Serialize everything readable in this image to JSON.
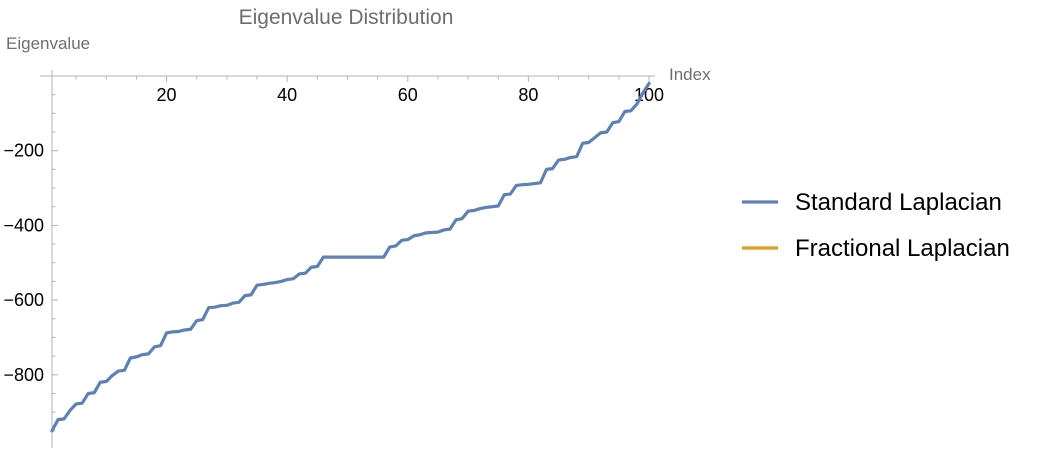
{
  "chart_data": {
    "type": "line",
    "title": "Eigenvalue Distribution",
    "xlabel": "Index",
    "ylabel": "Eigenvalue",
    "xlim": [
      1,
      100
    ],
    "ylim": [
      -960,
      0
    ],
    "x_ticks": [
      20,
      40,
      60,
      80,
      100
    ],
    "y_ticks": [
      -200,
      -400,
      -600,
      -800
    ],
    "grid": false,
    "legend": "right",
    "series": [
      {
        "name": "Standard Laplacian",
        "color": "#5e81b5",
        "x": [
          1,
          2,
          3,
          4,
          5,
          6,
          7,
          8,
          9,
          10,
          11,
          12,
          13,
          14,
          15,
          16,
          17,
          18,
          19,
          20,
          21,
          22,
          23,
          24,
          25,
          26,
          27,
          28,
          29,
          30,
          31,
          32,
          33,
          34,
          35,
          36,
          37,
          38,
          39,
          40,
          41,
          42,
          43,
          44,
          45,
          46,
          47,
          48,
          49,
          50,
          51,
          52,
          53,
          54,
          55,
          56,
          57,
          58,
          59,
          60,
          61,
          62,
          63,
          64,
          65,
          66,
          67,
          68,
          69,
          70,
          71,
          72,
          73,
          74,
          75,
          76,
          77,
          78,
          79,
          80,
          81,
          82,
          83,
          84,
          85,
          86,
          87,
          88,
          89,
          90,
          91,
          92,
          93,
          94,
          95,
          96,
          97,
          98,
          99,
          100
        ],
        "values": [
          -950,
          -920,
          -918,
          -895,
          -878,
          -876,
          -850,
          -848,
          -820,
          -818,
          -802,
          -790,
          -788,
          -755,
          -752,
          -746,
          -744,
          -725,
          -722,
          -688,
          -685,
          -684,
          -680,
          -678,
          -655,
          -652,
          -620,
          -619,
          -615,
          -614,
          -608,
          -606,
          -588,
          -586,
          -560,
          -558,
          -555,
          -553,
          -550,
          -545,
          -543,
          -530,
          -528,
          -512,
          -510,
          -485,
          -485,
          -485,
          -485,
          -485,
          -485,
          -485,
          -485,
          -485,
          -485,
          -485,
          -458,
          -455,
          -440,
          -438,
          -428,
          -425,
          -420,
          -419,
          -418,
          -412,
          -410,
          -385,
          -382,
          -362,
          -360,
          -355,
          -352,
          -350,
          -348,
          -318,
          -316,
          -293,
          -291,
          -290,
          -288,
          -286,
          -250,
          -248,
          -225,
          -223,
          -218,
          -216,
          -180,
          -178,
          -165,
          -152,
          -150,
          -125,
          -122,
          -95,
          -93,
          -75,
          -45,
          -20
        ]
      },
      {
        "name": "Fractional Laplacian",
        "color": "#e19c24",
        "x": [],
        "values": []
      }
    ]
  }
}
